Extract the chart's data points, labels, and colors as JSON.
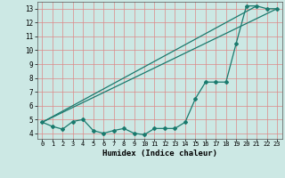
{
  "xlabel": "Humidex (Indice chaleur)",
  "bg_color": "#cce8e4",
  "grid_color": "#dd8888",
  "line_color": "#1a7a6e",
  "xlim": [
    -0.5,
    23.5
  ],
  "ylim": [
    3.6,
    13.5
  ],
  "xticks": [
    0,
    1,
    2,
    3,
    4,
    5,
    6,
    7,
    8,
    9,
    10,
    11,
    12,
    13,
    14,
    15,
    16,
    17,
    18,
    19,
    20,
    21,
    22,
    23
  ],
  "yticks": [
    4,
    5,
    6,
    7,
    8,
    9,
    10,
    11,
    12,
    13
  ],
  "series1_x": [
    0,
    1,
    2,
    3,
    4,
    5,
    6,
    7,
    8,
    9,
    10,
    11,
    12,
    13,
    14,
    15,
    16,
    17,
    18,
    19,
    20,
    21,
    22,
    23
  ],
  "series1_y": [
    4.8,
    4.5,
    4.3,
    4.85,
    5.0,
    4.2,
    4.0,
    4.2,
    4.35,
    4.0,
    3.9,
    4.35,
    4.35,
    4.35,
    4.8,
    6.5,
    7.7,
    7.7,
    7.7,
    10.5,
    13.2,
    13.2,
    13.0,
    13.0
  ],
  "series2_x": [
    0,
    23
  ],
  "series2_y": [
    4.8,
    13.0
  ],
  "series3_x": [
    0,
    21
  ],
  "series3_y": [
    4.8,
    13.2
  ]
}
